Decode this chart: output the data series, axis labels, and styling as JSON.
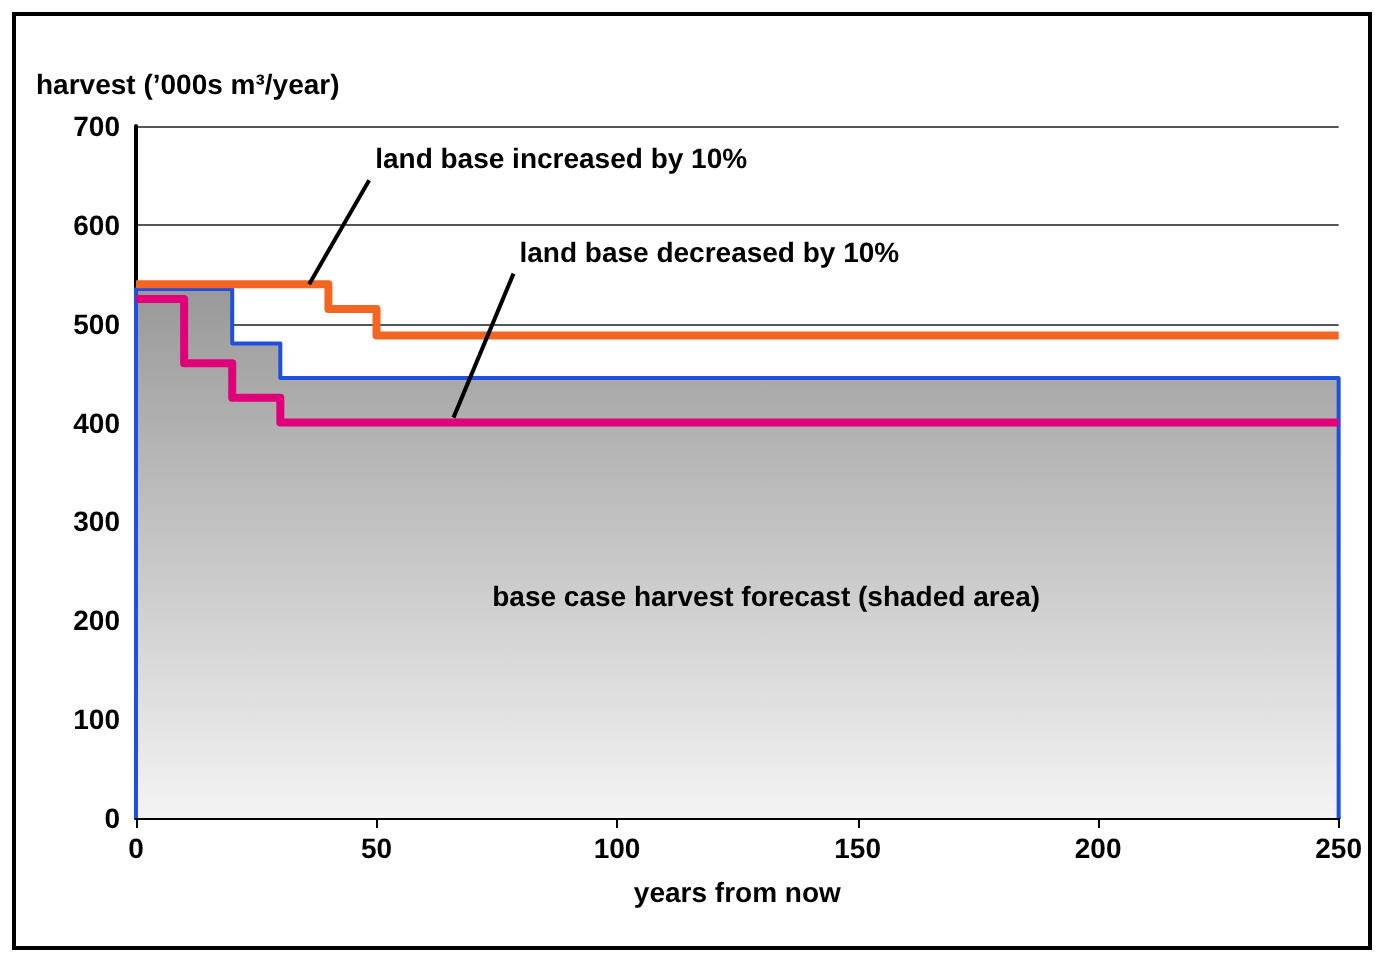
{
  "chart_data": {
    "type": "step",
    "ylabel": "harvest (’000s m³/year)",
    "xlabel": "years from now",
    "xlim": [
      0,
      250
    ],
    "xticks": [
      0,
      50,
      100,
      150,
      200,
      250
    ],
    "ylim": [
      0,
      700
    ],
    "yticks": [
      0,
      100,
      200,
      300,
      400,
      500,
      600,
      700
    ],
    "grid": "y",
    "marker": "none",
    "line_style": "solid",
    "series": [
      {
        "type": "area",
        "color": "#1f4fe0",
        "x": [
          0,
          0,
          20,
          30,
          250,
          250
        ],
        "values": [
          0,
          535,
          480,
          445,
          445,
          0
        ]
      },
      {
        "color": "#f26522",
        "x": [
          0,
          40,
          50,
          250
        ],
        "values": [
          540,
          515,
          488,
          488
        ]
      },
      {
        "color": "#e0007a",
        "x": [
          0,
          10,
          20,
          30,
          250
        ],
        "values": [
          525,
          460,
          425,
          400,
          400
        ]
      }
    ],
    "annotations": [
      {
        "text": "land base increased by 10%",
        "x": 36,
        "y": 540
      },
      {
        "text": "land base decreased by 10%",
        "x": 66,
        "y": 405
      },
      "base case harvest forecast (shaded area)"
    ]
  }
}
